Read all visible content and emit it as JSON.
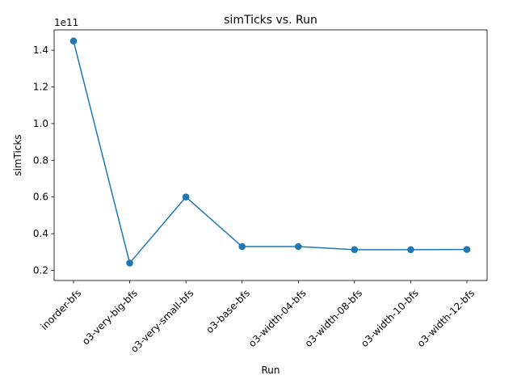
{
  "chart_data": {
    "type": "line",
    "title": "simTicks vs. Run",
    "xlabel": "Run",
    "ylabel": "simTicks",
    "y_offset_label": "1e11",
    "categories": [
      "inorder-bfs",
      "o3-very-big-bfs",
      "o3-very-small-bfs",
      "o3-base-bfs",
      "o3-width-04-bfs",
      "o3-width-08-bfs",
      "o3-width-10-bfs",
      "o3-width-12-bfs"
    ],
    "series": [
      {
        "values": [
          145000000000.0,
          24000000000.0,
          60000000000.0,
          33000000000.0,
          33000000000.0,
          31300000000.0,
          31300000000.0,
          31400000000.0
        ],
        "color": "#1f77b4",
        "marker": "circle"
      }
    ],
    "yticks": [
      0.2,
      0.4,
      0.6,
      0.8,
      1.0,
      1.2,
      1.4
    ],
    "ytick_labels": [
      "0.2",
      "0.4",
      "0.6",
      "0.8",
      "1.0",
      "1.2",
      "1.4"
    ],
    "ylim": [
      14500000000.0,
      151050000000.0
    ],
    "grid": false,
    "legend": "none"
  }
}
